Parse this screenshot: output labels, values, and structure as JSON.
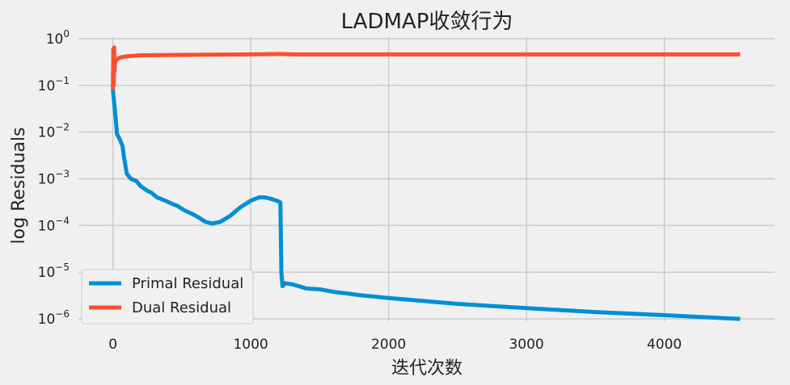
{
  "chart_data": {
    "type": "line",
    "title": "LADMAP收敛行为",
    "xlabel": "迭代次数",
    "ylabel": "log  Residuals",
    "yscale": "log",
    "xlim": [
      -250,
      4800
    ],
    "ylim_exponent": [
      -6.05,
      0.05
    ],
    "x_ticks": [
      0,
      1000,
      2000,
      3000,
      4000
    ],
    "x_tick_labels": [
      "0",
      "1000",
      "2000",
      "3000",
      "4000"
    ],
    "y_ticks_exponent": [
      0,
      -1,
      -2,
      -3,
      -4,
      -5,
      -6
    ],
    "grid": true,
    "legend_position": "lower-left",
    "series": [
      {
        "name": "Primal Residual",
        "color": "#008fd5",
        "points": [
          [
            0,
            0.08
          ],
          [
            10,
            0.04
          ],
          [
            20,
            0.02
          ],
          [
            30,
            0.009
          ],
          [
            50,
            0.007
          ],
          [
            70,
            0.005
          ],
          [
            80,
            0.003
          ],
          [
            90,
            0.002
          ],
          [
            100,
            0.0013
          ],
          [
            130,
            0.001
          ],
          [
            170,
            0.0009
          ],
          [
            200,
            0.0007
          ],
          [
            250,
            0.00055
          ],
          [
            280,
            0.0005
          ],
          [
            320,
            0.0004
          ],
          [
            370,
            0.00035
          ],
          [
            420,
            0.0003
          ],
          [
            470,
            0.00026
          ],
          [
            520,
            0.00021
          ],
          [
            570,
            0.00018
          ],
          [
            620,
            0.00015
          ],
          [
            670,
            0.00012
          ],
          [
            720,
            0.00011
          ],
          [
            780,
            0.00012
          ],
          [
            850,
            0.00016
          ],
          [
            920,
            0.00024
          ],
          [
            1000,
            0.00034
          ],
          [
            1060,
            0.0004
          ],
          [
            1100,
            0.0004
          ],
          [
            1150,
            0.00037
          ],
          [
            1200,
            0.00033
          ],
          [
            1215,
            0.00031
          ],
          [
            1222,
            1e-05
          ],
          [
            1230,
            5e-06
          ],
          [
            1250,
            5.8e-06
          ],
          [
            1300,
            5.5e-06
          ],
          [
            1350,
            5e-06
          ],
          [
            1400,
            4.5e-06
          ],
          [
            1500,
            4.3e-06
          ],
          [
            1600,
            3.8e-06
          ],
          [
            1700,
            3.5e-06
          ],
          [
            1800,
            3.2e-06
          ],
          [
            1900,
            3e-06
          ],
          [
            2000,
            2.8e-06
          ],
          [
            2200,
            2.5e-06
          ],
          [
            2500,
            2.1e-06
          ],
          [
            3000,
            1.7e-06
          ],
          [
            3500,
            1.4e-06
          ],
          [
            4000,
            1.2e-06
          ],
          [
            4550,
            1e-06
          ]
        ]
      },
      {
        "name": "Dual Residual",
        "color": "#fc4f30",
        "points": [
          [
            0,
            0.08
          ],
          [
            3,
            0.6
          ],
          [
            6,
            0.1
          ],
          [
            9,
            0.65
          ],
          [
            12,
            0.2
          ],
          [
            15,
            0.3
          ],
          [
            25,
            0.35
          ],
          [
            40,
            0.38
          ],
          [
            60,
            0.4
          ],
          [
            100,
            0.42
          ],
          [
            200,
            0.44
          ],
          [
            500,
            0.45
          ],
          [
            1000,
            0.46
          ],
          [
            1200,
            0.47
          ],
          [
            1220,
            0.47
          ],
          [
            1300,
            0.46
          ],
          [
            2000,
            0.46
          ],
          [
            3000,
            0.46
          ],
          [
            4000,
            0.46
          ],
          [
            4550,
            0.46
          ]
        ]
      }
    ]
  }
}
